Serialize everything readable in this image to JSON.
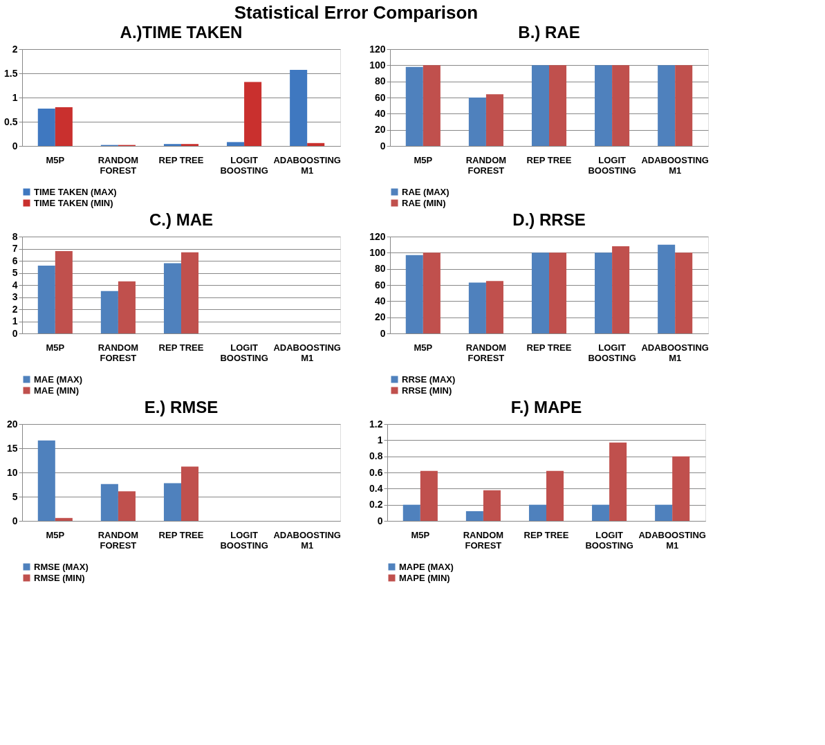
{
  "chart_data": [
    {
      "type": "other",
      "title": "Statistical Error Comparison"
    },
    {
      "type": "bar",
      "title": "A.)TIME TAKEN",
      "categories": [
        "M5P",
        "RANDOM FOREST",
        "REP TREE",
        "LOGIT BOOSTING",
        "ADABOOSTING M1"
      ],
      "series": [
        {
          "name": "TIME TAKEN (MAX)",
          "color": "#3f78c0",
          "values": [
            0.77,
            0.02,
            0.04,
            0.08,
            1.57
          ]
        },
        {
          "name": "TIME TAKEN (MIN)",
          "color": "#c9302e",
          "values": [
            0.8,
            0.02,
            0.04,
            1.32,
            0.06
          ]
        }
      ],
      "ylim": [
        0,
        2
      ],
      "yticks": [
        0,
        0.5,
        1,
        1.5,
        2
      ],
      "grid": "y",
      "legend": "bottom"
    },
    {
      "type": "bar",
      "title": "B.) RAE",
      "categories": [
        "M5P",
        "RANDOM FOREST",
        "REP TREE",
        "LOGIT BOOSTING",
        "ADABOOSTING M1"
      ],
      "series": [
        {
          "name": "RAE (MAX)",
          "color": "#4f81bd",
          "values": [
            98,
            60,
            100,
            100,
            100
          ]
        },
        {
          "name": "RAE (MIN)",
          "color": "#c0504d",
          "values": [
            100,
            64,
            100,
            100,
            100
          ]
        }
      ],
      "ylim": [
        0,
        120
      ],
      "yticks": [
        0,
        20,
        40,
        60,
        80,
        100,
        120
      ],
      "grid": "y",
      "legend": "bottom"
    },
    {
      "type": "bar",
      "title": "C.) MAE",
      "categories": [
        "M5P",
        "RANDOM FOREST",
        "REP TREE",
        "LOGIT BOOSTING",
        "ADABOOSTING M1"
      ],
      "series": [
        {
          "name": "MAE (MAX)",
          "color": "#4f81bd",
          "values": [
            5.6,
            3.5,
            5.8,
            null,
            null
          ]
        },
        {
          "name": "MAE (MIN)",
          "color": "#c0504d",
          "values": [
            6.8,
            4.3,
            6.7,
            null,
            null
          ]
        }
      ],
      "ylim": [
        0,
        8
      ],
      "yticks": [
        0,
        1,
        2,
        3,
        4,
        5,
        6,
        7,
        8
      ],
      "grid": "y",
      "legend": "bottom"
    },
    {
      "type": "bar",
      "title": "D.) RRSE",
      "categories": [
        "M5P",
        "RANDOM FOREST",
        "REP TREE",
        "LOGIT BOOSTING",
        "ADABOOSTING M1"
      ],
      "series": [
        {
          "name": "RRSE (MAX)",
          "color": "#4f81bd",
          "values": [
            97,
            63,
            100,
            100,
            110
          ]
        },
        {
          "name": "RRSE (MIN)",
          "color": "#c0504d",
          "values": [
            100,
            65,
            100,
            108,
            100
          ]
        }
      ],
      "ylim": [
        0,
        120
      ],
      "yticks": [
        0,
        20,
        40,
        60,
        80,
        100,
        120
      ],
      "grid": "y",
      "legend": "bottom"
    },
    {
      "type": "bar",
      "title": "E.) RMSE",
      "categories": [
        "M5P",
        "RANDOM FOREST",
        "REP TREE",
        "LOGIT BOOSTING",
        "ADABOOSTING M1"
      ],
      "series": [
        {
          "name": "RMSE (MAX)",
          "color": "#4f81bd",
          "values": [
            16.6,
            7.6,
            7.8,
            null,
            null
          ]
        },
        {
          "name": "RMSE (MIN)",
          "color": "#c0504d",
          "values": [
            0.6,
            6.1,
            11.2,
            null,
            null
          ]
        }
      ],
      "ylim": [
        0,
        20
      ],
      "yticks": [
        0,
        5,
        10,
        15,
        20
      ],
      "grid": "y",
      "legend": "bottom"
    },
    {
      "type": "bar",
      "title": "F.) MAPE",
      "categories": [
        "M5P",
        "RANDOM FOREST",
        "REP TREE",
        "LOGIT BOOSTING",
        "ADABOOSTING M1"
      ],
      "series": [
        {
          "name": "MAPE (MAX)",
          "color": "#4f81bd",
          "values": [
            0.2,
            0.12,
            0.2,
            0.2,
            0.2
          ]
        },
        {
          "name": "MAPE (MIN)",
          "color": "#c0504d",
          "values": [
            0.62,
            0.38,
            0.62,
            0.97,
            0.8
          ]
        }
      ],
      "ylim": [
        0,
        1.2
      ],
      "yticks": [
        0,
        0.2,
        0.4,
        0.6,
        0.8,
        1,
        1.2
      ],
      "grid": "y",
      "legend": "bottom"
    }
  ]
}
